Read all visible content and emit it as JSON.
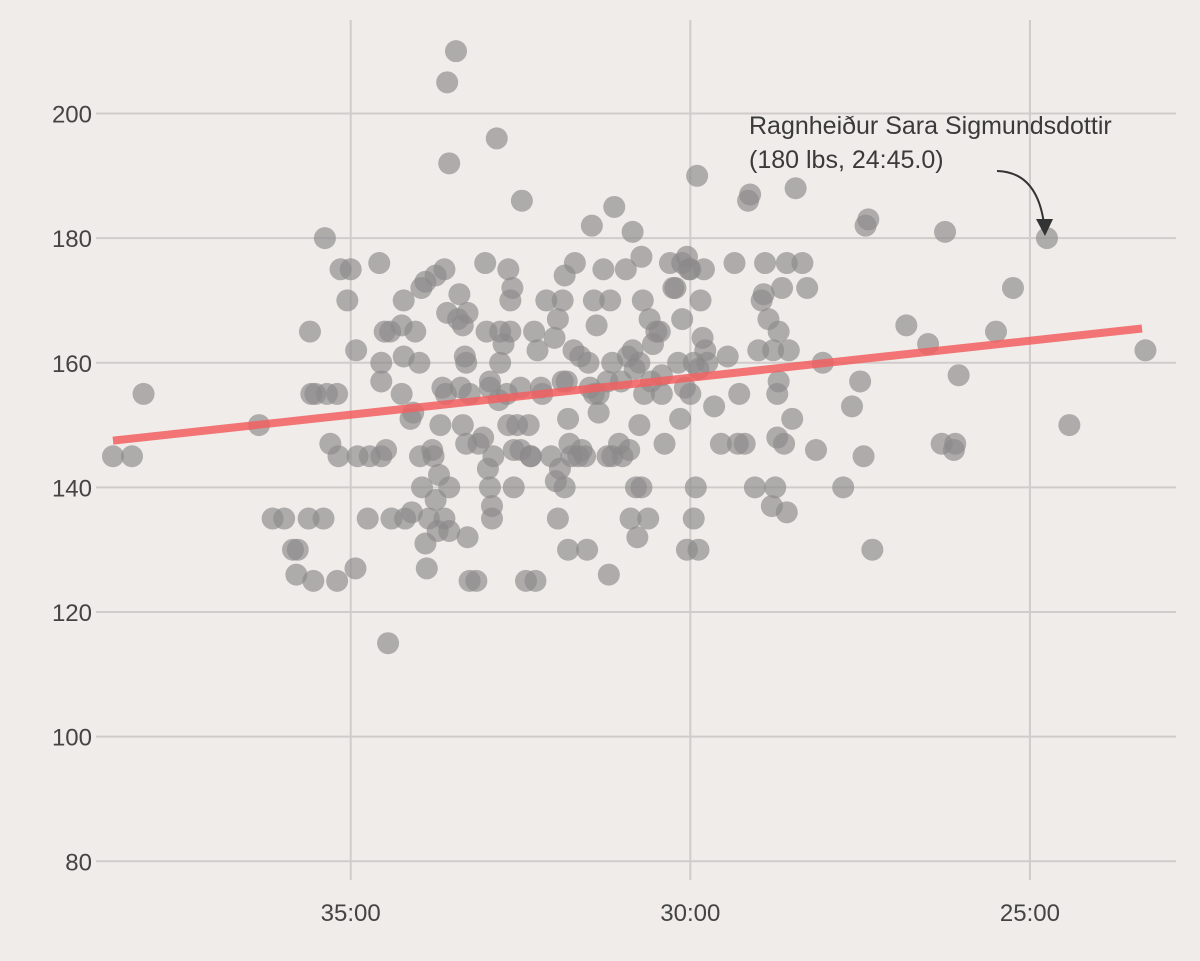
{
  "chart_data": {
    "type": "scatter",
    "title": "",
    "xlabel": "",
    "ylabel": "",
    "x_unit": "minutes (mm:ss), reversed axis",
    "x_reversed": true,
    "xlim": [
      38.75,
      22.85
    ],
    "ylim": [
      77,
      215
    ],
    "x_ticks": [
      {
        "value": 35,
        "label": "35:00"
      },
      {
        "value": 30,
        "label": "30:00"
      },
      {
        "value": 25,
        "label": "25:00"
      }
    ],
    "y_ticks": [
      80,
      100,
      120,
      140,
      160,
      180,
      200
    ],
    "grid": true,
    "colors": {
      "background": "#efecea",
      "points": "#8a8888",
      "trend": "#f25f5f",
      "grid": "#cfcccb",
      "text": "#444444"
    },
    "trend_line": {
      "x": [
        38.5,
        23.35
      ],
      "y": [
        147.5,
        165.5
      ]
    },
    "annotation": {
      "lines": [
        "Ragnheiður Sara Sigmundsdottir",
        "(180 lbs, 24:45.0)"
      ],
      "point": {
        "x": 24.75,
        "y": 180
      }
    },
    "points": [
      [
        38.5,
        145
      ],
      [
        38.22,
        145
      ],
      [
        38.05,
        155
      ],
      [
        36.35,
        150
      ],
      [
        36.15,
        135
      ],
      [
        35.98,
        135
      ],
      [
        35.85,
        130
      ],
      [
        35.8,
        126
      ],
      [
        35.78,
        130
      ],
      [
        35.62,
        135
      ],
      [
        35.58,
        155
      ],
      [
        35.55,
        125
      ],
      [
        35.52,
        155
      ],
      [
        35.6,
        165
      ],
      [
        35.4,
        135
      ],
      [
        35.38,
        180
      ],
      [
        35.35,
        155
      ],
      [
        35.3,
        147
      ],
      [
        35.2,
        155
      ],
      [
        35.18,
        145
      ],
      [
        35.2,
        125
      ],
      [
        35.15,
        175
      ],
      [
        35.05,
        170
      ],
      [
        35.0,
        175
      ],
      [
        34.92,
        162
      ],
      [
        34.9,
        145
      ],
      [
        34.93,
        127
      ],
      [
        34.75,
        135
      ],
      [
        34.72,
        145
      ],
      [
        34.58,
        176
      ],
      [
        34.55,
        160
      ],
      [
        34.55,
        157
      ],
      [
        34.55,
        145
      ],
      [
        34.5,
        165
      ],
      [
        34.48,
        146
      ],
      [
        34.42,
        165
      ],
      [
        34.45,
        115
      ],
      [
        34.4,
        135
      ],
      [
        34.25,
        166
      ],
      [
        34.25,
        155
      ],
      [
        34.22,
        170
      ],
      [
        34.22,
        161
      ],
      [
        34.2,
        135
      ],
      [
        34.12,
        151
      ],
      [
        34.1,
        136
      ],
      [
        34.08,
        152
      ],
      [
        34.05,
        165
      ],
      [
        33.99,
        160
      ],
      [
        33.96,
        172
      ],
      [
        33.98,
        145
      ],
      [
        33.95,
        140
      ],
      [
        33.9,
        131
      ],
      [
        33.9,
        173
      ],
      [
        33.88,
        127
      ],
      [
        33.85,
        135
      ],
      [
        33.8,
        146
      ],
      [
        33.78,
        145
      ],
      [
        33.75,
        174
      ],
      [
        33.75,
        138
      ],
      [
        33.72,
        133
      ],
      [
        33.68,
        150
      ],
      [
        33.7,
        142
      ],
      [
        33.65,
        156
      ],
      [
        33.62,
        175
      ],
      [
        33.62,
        135
      ],
      [
        33.6,
        155
      ],
      [
        33.55,
        133
      ],
      [
        33.58,
        168
      ],
      [
        33.55,
        140
      ],
      [
        33.55,
        192
      ],
      [
        33.58,
        205
      ],
      [
        33.45,
        210
      ],
      [
        33.42,
        167
      ],
      [
        33.4,
        171
      ],
      [
        33.38,
        156
      ],
      [
        33.35,
        166
      ],
      [
        33.35,
        150
      ],
      [
        33.32,
        161
      ],
      [
        33.3,
        147
      ],
      [
        33.3,
        160
      ],
      [
        33.28,
        132
      ],
      [
        33.25,
        125
      ],
      [
        33.28,
        168
      ],
      [
        33.25,
        155
      ],
      [
        33.15,
        125
      ],
      [
        33.12,
        147
      ],
      [
        33.05,
        148
      ],
      [
        33.02,
        176
      ],
      [
        33.0,
        165
      ],
      [
        32.95,
        157
      ],
      [
        32.98,
        143
      ],
      [
        32.95,
        140
      ],
      [
        32.92,
        137
      ],
      [
        32.92,
        135
      ],
      [
        32.95,
        156
      ],
      [
        32.9,
        145
      ],
      [
        32.85,
        196
      ],
      [
        32.8,
        160
      ],
      [
        32.82,
        154
      ],
      [
        32.75,
        163
      ],
      [
        32.8,
        165
      ],
      [
        32.7,
        155
      ],
      [
        32.68,
        175
      ],
      [
        32.68,
        150
      ],
      [
        32.65,
        170
      ],
      [
        32.65,
        165
      ],
      [
        32.62,
        172
      ],
      [
        32.6,
        140
      ],
      [
        32.6,
        146
      ],
      [
        32.55,
        150
      ],
      [
        32.5,
        146
      ],
      [
        32.5,
        156
      ],
      [
        32.48,
        186
      ],
      [
        32.42,
        125
      ],
      [
        32.38,
        150
      ],
      [
        32.35,
        145
      ],
      [
        32.35,
        145
      ],
      [
        32.3,
        165
      ],
      [
        32.28,
        125
      ],
      [
        32.25,
        162
      ],
      [
        32.2,
        156
      ],
      [
        32.18,
        155
      ],
      [
        32.12,
        170
      ],
      [
        32.05,
        145
      ],
      [
        32.0,
        164
      ],
      [
        31.98,
        141
      ],
      [
        31.95,
        167
      ],
      [
        31.95,
        135
      ],
      [
        31.92,
        143
      ],
      [
        31.88,
        170
      ],
      [
        31.85,
        174
      ],
      [
        31.88,
        157
      ],
      [
        31.85,
        140
      ],
      [
        31.82,
        157
      ],
      [
        31.8,
        130
      ],
      [
        31.8,
        151
      ],
      [
        31.78,
        147
      ],
      [
        31.75,
        145
      ],
      [
        31.72,
        162
      ],
      [
        31.7,
        176
      ],
      [
        31.65,
        145
      ],
      [
        31.62,
        161
      ],
      [
        31.6,
        146
      ],
      [
        31.55,
        145
      ],
      [
        31.52,
        130
      ],
      [
        31.5,
        160
      ],
      [
        31.48,
        156
      ],
      [
        31.45,
        182
      ],
      [
        31.42,
        155
      ],
      [
        31.42,
        170
      ],
      [
        31.38,
        166
      ],
      [
        31.35,
        152
      ],
      [
        31.35,
        155
      ],
      [
        31.28,
        175
      ],
      [
        31.22,
        145
      ],
      [
        31.22,
        157
      ],
      [
        31.2,
        126
      ],
      [
        31.18,
        170
      ],
      [
        31.15,
        160
      ],
      [
        31.15,
        145
      ],
      [
        31.12,
        185
      ],
      [
        31.05,
        147
      ],
      [
        31.02,
        157
      ],
      [
        31.0,
        145
      ],
      [
        30.95,
        175
      ],
      [
        30.92,
        161
      ],
      [
        30.9,
        146
      ],
      [
        30.88,
        135
      ],
      [
        30.85,
        181
      ],
      [
        30.85,
        162
      ],
      [
        30.82,
        159
      ],
      [
        30.8,
        140
      ],
      [
        30.78,
        132
      ],
      [
        30.75,
        150
      ],
      [
        30.75,
        160
      ],
      [
        30.72,
        177
      ],
      [
        30.72,
        140
      ],
      [
        30.7,
        170
      ],
      [
        30.68,
        155
      ],
      [
        30.62,
        135
      ],
      [
        30.6,
        167
      ],
      [
        30.58,
        157
      ],
      [
        30.55,
        163
      ],
      [
        30.5,
        165
      ],
      [
        30.45,
        165
      ],
      [
        30.42,
        155
      ],
      [
        30.42,
        158
      ],
      [
        30.38,
        147
      ],
      [
        30.3,
        176
      ],
      [
        30.25,
        172
      ],
      [
        30.22,
        172
      ],
      [
        30.18,
        160
      ],
      [
        30.12,
        167
      ],
      [
        30.15,
        151
      ],
      [
        30.12,
        176
      ],
      [
        30.08,
        156
      ],
      [
        30.05,
        130
      ],
      [
        30.05,
        177
      ],
      [
        30.02,
        175
      ],
      [
        30.0,
        155
      ],
      [
        30.0,
        175
      ],
      [
        29.95,
        135
      ],
      [
        29.95,
        160
      ],
      [
        29.92,
        140
      ],
      [
        29.9,
        190
      ],
      [
        29.88,
        130
      ],
      [
        29.88,
        159
      ],
      [
        29.85,
        170
      ],
      [
        29.82,
        164
      ],
      [
        29.8,
        175
      ],
      [
        29.78,
        162
      ],
      [
        29.75,
        160
      ],
      [
        29.65,
        153
      ],
      [
        29.55,
        147
      ],
      [
        29.45,
        161
      ],
      [
        29.35,
        176
      ],
      [
        29.3,
        147
      ],
      [
        29.28,
        155
      ],
      [
        29.2,
        147
      ],
      [
        29.15,
        186
      ],
      [
        29.12,
        187
      ],
      [
        29.0,
        162
      ],
      [
        29.05,
        140
      ],
      [
        28.95,
        170
      ],
      [
        28.9,
        176
      ],
      [
        28.92,
        171
      ],
      [
        28.85,
        167
      ],
      [
        28.8,
        137
      ],
      [
        28.78,
        162
      ],
      [
        28.75,
        140
      ],
      [
        28.72,
        155
      ],
      [
        28.72,
        148
      ],
      [
        28.7,
        157
      ],
      [
        28.7,
        165
      ],
      [
        28.65,
        172
      ],
      [
        28.62,
        147
      ],
      [
        28.58,
        136
      ],
      [
        28.58,
        176
      ],
      [
        28.55,
        162
      ],
      [
        28.5,
        151
      ],
      [
        28.45,
        188
      ],
      [
        28.35,
        176
      ],
      [
        28.28,
        172
      ],
      [
        28.15,
        146
      ],
      [
        28.05,
        160
      ],
      [
        27.75,
        140
      ],
      [
        27.62,
        153
      ],
      [
        27.5,
        157
      ],
      [
        27.45,
        145
      ],
      [
        27.42,
        182
      ],
      [
        27.38,
        183
      ],
      [
        27.32,
        130
      ],
      [
        26.82,
        166
      ],
      [
        26.5,
        163
      ],
      [
        26.3,
        147
      ],
      [
        26.25,
        181
      ],
      [
        26.12,
        146
      ],
      [
        26.1,
        147
      ],
      [
        26.05,
        158
      ],
      [
        25.5,
        165
      ],
      [
        25.25,
        172
      ],
      [
        24.75,
        180
      ],
      [
        24.42,
        150
      ],
      [
        23.3,
        162
      ]
    ]
  }
}
